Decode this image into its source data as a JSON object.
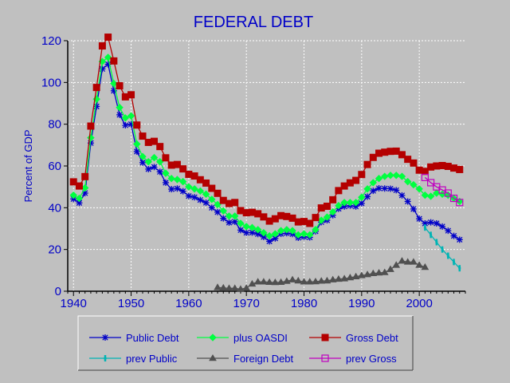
{
  "chart_data": {
    "type": "line",
    "title": "FEDERAL DEBT",
    "xlabel": "",
    "ylabel": "Percent of GDP",
    "xlim": [
      1939,
      2008
    ],
    "ylim": [
      0,
      120
    ],
    "x_ticks": [
      1940,
      1950,
      1960,
      1970,
      1980,
      1990,
      2000
    ],
    "y_ticks": [
      0,
      20,
      40,
      60,
      80,
      100,
      120
    ],
    "grid": true,
    "legend_position": "bottom",
    "series": [
      {
        "name": "Public Debt",
        "color": "#0000c8",
        "marker": "asterisk",
        "x": [
          1940,
          1941,
          1942,
          1943,
          1944,
          1945,
          1946,
          1947,
          1948,
          1949,
          1950,
          1951,
          1952,
          1953,
          1954,
          1955,
          1956,
          1957,
          1958,
          1959,
          1960,
          1961,
          1962,
          1963,
          1964,
          1965,
          1966,
          1967,
          1968,
          1969,
          1970,
          1971,
          1972,
          1973,
          1974,
          1975,
          1976,
          1977,
          1978,
          1979,
          1980,
          1981,
          1982,
          1983,
          1984,
          1985,
          1986,
          1987,
          1988,
          1989,
          1990,
          1991,
          1992,
          1993,
          1994,
          1995,
          1996,
          1997,
          1998,
          1999,
          2000,
          2001,
          2002,
          2003,
          2004,
          2005,
          2006,
          2007
        ],
        "y": [
          44.2,
          42.3,
          47.0,
          71.0,
          88.5,
          106.5,
          108.7,
          96.0,
          84.5,
          79.5,
          80.0,
          66.9,
          61.6,
          58.5,
          59.5,
          57.2,
          52.0,
          48.9,
          49.2,
          47.9,
          45.6,
          45.0,
          43.7,
          42.4,
          40.0,
          37.9,
          34.9,
          32.9,
          33.3,
          29.3,
          28.0,
          28.1,
          27.4,
          26.0,
          23.9,
          25.3,
          27.5,
          27.8,
          27.4,
          25.6,
          26.1,
          25.8,
          28.7,
          33.1,
          34.0,
          36.4,
          39.5,
          40.6,
          41.0,
          40.6,
          42.1,
          45.3,
          48.1,
          49.3,
          49.2,
          49.1,
          48.4,
          45.9,
          43.0,
          39.4,
          34.7,
          32.5,
          33.0,
          32.5,
          31.0,
          29.0,
          26.5,
          24.7
        ]
      },
      {
        "name": "plus OASDI",
        "color": "#00ff40",
        "marker": "diamond",
        "x": [
          1940,
          1941,
          1942,
          1943,
          1944,
          1945,
          1946,
          1947,
          1948,
          1949,
          1950,
          1951,
          1952,
          1953,
          1954,
          1955,
          1956,
          1957,
          1958,
          1959,
          1960,
          1961,
          1962,
          1963,
          1964,
          1965,
          1966,
          1967,
          1968,
          1969,
          1970,
          1971,
          1972,
          1973,
          1974,
          1975,
          1976,
          1977,
          1978,
          1979,
          1980,
          1981,
          1982,
          1983,
          1984,
          1985,
          1986,
          1987,
          1988,
          1989,
          1990,
          1991,
          1992,
          1993,
          1994,
          1995,
          1996,
          1997,
          1998,
          1999,
          2000,
          2001,
          2002,
          2003,
          2004,
          2005,
          2006,
          2007
        ],
        "y": [
          46.0,
          44.5,
          49.5,
          73.5,
          92.0,
          110.0,
          112.0,
          99.5,
          88.0,
          83.0,
          84.0,
          70.5,
          64.5,
          62.0,
          64.0,
          62.0,
          56.5,
          54.0,
          53.5,
          52.5,
          50.0,
          49.0,
          48.0,
          46.5,
          44.0,
          41.5,
          38.5,
          36.0,
          36.0,
          32.5,
          31.0,
          30.5,
          29.5,
          28.0,
          26.5,
          27.5,
          29.0,
          29.5,
          29.0,
          27.0,
          27.5,
          27.0,
          29.5,
          34.0,
          35.5,
          38.0,
          41.0,
          42.5,
          42.5,
          42.5,
          45.0,
          49.0,
          52.0,
          54.0,
          55.0,
          55.5,
          55.5,
          55.0,
          52.5,
          51.0,
          49.0,
          46.0,
          45.5,
          47.0,
          46.5,
          46.0,
          44.5,
          43.0
        ]
      },
      {
        "name": "Gross Debt",
        "color": "#b40000",
        "marker": "square",
        "x": [
          1940,
          1941,
          1942,
          1943,
          1944,
          1945,
          1946,
          1947,
          1948,
          1949,
          1950,
          1951,
          1952,
          1953,
          1954,
          1955,
          1956,
          1957,
          1958,
          1959,
          1960,
          1961,
          1962,
          1963,
          1964,
          1965,
          1966,
          1967,
          1968,
          1969,
          1970,
          1971,
          1972,
          1973,
          1974,
          1975,
          1976,
          1977,
          1978,
          1979,
          1980,
          1981,
          1982,
          1983,
          1984,
          1985,
          1986,
          1987,
          1988,
          1989,
          1990,
          1991,
          1992,
          1993,
          1994,
          1995,
          1996,
          1997,
          1998,
          1999,
          2000,
          2001,
          2002,
          2003,
          2004,
          2005,
          2006,
          2007
        ],
        "y": [
          52.4,
          50.4,
          54.9,
          79.1,
          97.6,
          117.5,
          121.7,
          110.3,
          98.4,
          93.1,
          94.1,
          79.6,
          74.3,
          71.3,
          71.8,
          69.3,
          63.9,
          60.4,
          60.7,
          58.6,
          56.0,
          55.2,
          53.4,
          51.8,
          49.3,
          46.9,
          43.5,
          42.0,
          42.5,
          38.6,
          37.6,
          37.8,
          37.1,
          35.6,
          33.6,
          34.7,
          36.2,
          35.8,
          35.0,
          33.2,
          33.4,
          32.5,
          35.3,
          39.9,
          40.7,
          43.8,
          48.2,
          50.4,
          51.9,
          53.1,
          55.9,
          60.7,
          64.1,
          66.1,
          66.6,
          67.0,
          67.1,
          65.4,
          63.2,
          61.4,
          58.0,
          57.4,
          59.5,
          60.0,
          60.2,
          59.8,
          59.0,
          58.3
        ]
      },
      {
        "name": "prev Public",
        "color": "#00b4b4",
        "marker": "cross",
        "x": [
          2001,
          2002,
          2003,
          2004,
          2005,
          2006,
          2007
        ],
        "y": [
          30.5,
          27.0,
          23.5,
          20.0,
          17.0,
          14.0,
          11.0
        ]
      },
      {
        "name": "Foreign Debt",
        "color": "#505050",
        "marker": "triangle",
        "x": [
          1965,
          1966,
          1967,
          1968,
          1969,
          1970,
          1971,
          1972,
          1973,
          1974,
          1975,
          1976,
          1977,
          1978,
          1979,
          1980,
          1981,
          1982,
          1983,
          1984,
          1985,
          1986,
          1987,
          1988,
          1989,
          1990,
          1991,
          1992,
          1993,
          1994,
          1995,
          1996,
          1997,
          1998,
          1999,
          2000,
          2001
        ],
        "y": [
          1.8,
          1.6,
          1.4,
          1.4,
          1.0,
          1.5,
          3.5,
          4.5,
          4.5,
          4.3,
          4.2,
          4.3,
          4.8,
          5.5,
          5.0,
          4.5,
          4.5,
          4.6,
          4.9,
          5.0,
          5.5,
          5.8,
          6.0,
          6.5,
          7.0,
          7.5,
          8.0,
          8.5,
          8.8,
          9.0,
          10.5,
          12.5,
          14.5,
          14.0,
          14.0,
          12.5,
          11.5
        ]
      },
      {
        "name": "prev Gross",
        "color": "#c000c0",
        "marker": "open-square",
        "x": [
          2001,
          2002,
          2003,
          2004,
          2005,
          2006,
          2007
        ],
        "y": [
          54.5,
          52.0,
          50.0,
          48.5,
          47.0,
          44.5,
          42.5
        ]
      }
    ]
  }
}
